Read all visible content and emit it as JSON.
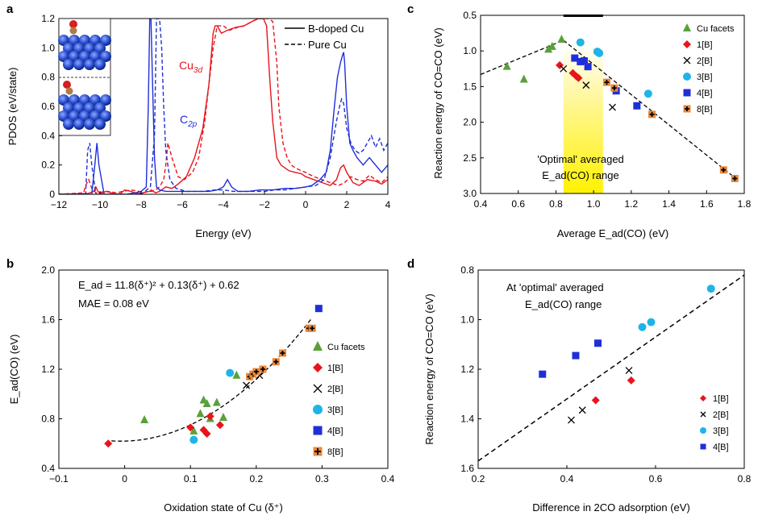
{
  "colors": {
    "red": "#e8141c",
    "blue": "#1f2fd8",
    "green": "#5aa03a",
    "cyan": "#1fb4e8",
    "orange": "#e8883a",
    "yellow": "#fff200",
    "black": "#000000"
  },
  "chart_data": [
    {
      "panel": "a",
      "type": "line",
      "xlabel": "Energy (eV)",
      "ylabel": "PDOS (eV/state)",
      "xlim": [
        -12,
        4
      ],
      "ylim": [
        0,
        1.2
      ],
      "xticks": [
        "−12",
        "−10",
        "−8",
        "−6",
        "−4",
        "−2",
        "0",
        "2",
        "4"
      ],
      "yticks": [
        "0",
        "0.2",
        "0.4",
        "0.6",
        "0.8",
        "1.0",
        "1.2"
      ],
      "legend": [
        "B-doped Cu",
        "Pure Cu"
      ],
      "legend_position": "top-right",
      "annotations": {
        "cu": "Cu",
        "cu_sub": "3d",
        "c": "C",
        "c_sub": "2p"
      },
      "inset": "atomic structure images (top: B-doped Cu, bottom: pure Cu)",
      "series": [
        {
          "name": "Cu3d B-doped Cu",
          "color": "red",
          "style": "solid",
          "x": [
            -12,
            -10.6,
            -10.3,
            -10.2,
            -10.1,
            -10.0,
            -9.7,
            -9.2,
            -9.0,
            -8.8,
            -8.5,
            -8.2,
            -7.9,
            -7.6,
            -7.5,
            -7.4,
            -7.3,
            -7.1,
            -6.8,
            -6.5,
            -6.2,
            -5.8,
            -5.4,
            -5.0,
            -4.7,
            -4.5,
            -4.4,
            -4.3,
            -4.1,
            -3.8,
            -3.4,
            -3.0,
            -2.6,
            -2.3,
            -2.15,
            -2.05,
            -1.9,
            -1.75,
            -1.6,
            -1.4,
            -1.2,
            -1.0,
            -0.8,
            -0.5,
            -0.2,
            0.0,
            0.4,
            0.8,
            1.2,
            1.5,
            1.7,
            1.85,
            2.0,
            2.3,
            2.6,
            3.0,
            3.4,
            3.7,
            4.0
          ],
          "y": [
            0.0,
            0.005,
            0.02,
            0.05,
            0.02,
            0.005,
            0.02,
            0.0,
            0.005,
            0.03,
            0.02,
            0.005,
            0.01,
            0.02,
            0.03,
            0.02,
            0.01,
            0.02,
            0.05,
            0.04,
            0.07,
            0.12,
            0.25,
            0.45,
            0.75,
            1.1,
            1.15,
            1.15,
            1.1,
            1.12,
            1.14,
            1.15,
            1.18,
            1.2,
            1.2,
            1.2,
            1.15,
            0.8,
            0.5,
            0.25,
            0.2,
            0.18,
            0.16,
            0.15,
            0.14,
            0.12,
            0.1,
            0.08,
            0.06,
            0.1,
            0.18,
            0.2,
            0.15,
            0.08,
            0.06,
            0.1,
            0.09,
            0.07,
            0.1
          ]
        },
        {
          "name": "Cu3d Pure Cu",
          "color": "red",
          "style": "dashed",
          "x": [
            -12,
            -10.8,
            -10.7,
            -10.55,
            -10.4,
            -10.2,
            -9.6,
            -9.2,
            -8.9,
            -8.5,
            -8.1,
            -7.9,
            -7.7,
            -7.5,
            -7.3,
            -7.1,
            -6.9,
            -6.8,
            -6.7,
            -6.5,
            -6.2,
            -5.9,
            -5.5,
            -5.2,
            -4.9,
            -4.7,
            -4.5,
            -4.3,
            -4.0,
            -3.7,
            -3.3,
            -3.0,
            -2.6,
            -2.3,
            -2.0,
            -1.8,
            -1.6,
            -1.4,
            -1.3,
            -1.1,
            -0.9,
            -0.7,
            -0.5,
            -0.2,
            0.0,
            0.4,
            0.8,
            1.2,
            1.6,
            1.9,
            2.2,
            2.5,
            2.8,
            3.1,
            3.4,
            3.7,
            4.0
          ],
          "y": [
            0.0,
            0.01,
            0.06,
            0.1,
            0.04,
            0.01,
            0.02,
            0.01,
            0.02,
            0.03,
            0.02,
            0.01,
            0.02,
            0.02,
            0.03,
            0.05,
            0.1,
            0.2,
            0.35,
            0.25,
            0.12,
            0.1,
            0.15,
            0.25,
            0.5,
            0.75,
            1.0,
            1.15,
            1.15,
            1.12,
            1.14,
            1.15,
            1.18,
            1.2,
            1.2,
            1.2,
            1.18,
            0.9,
            0.6,
            0.35,
            0.25,
            0.2,
            0.18,
            0.16,
            0.15,
            0.12,
            0.1,
            0.08,
            0.06,
            0.08,
            0.12,
            0.1,
            0.09,
            0.13,
            0.1,
            0.08,
            0.12
          ]
        },
        {
          "name": "C2p B-doped Cu",
          "color": "blue",
          "style": "solid",
          "x": [
            -12,
            -10.4,
            -10.25,
            -10.15,
            -10.05,
            -9.8,
            -9.0,
            -8.7,
            -8.3,
            -8.0,
            -7.75,
            -7.65,
            -7.58,
            -7.52,
            -7.45,
            -7.35,
            -7.25,
            -7.1,
            -6.8,
            -6.4,
            -5.8,
            -5.2,
            -4.7,
            -4.3,
            -4.0,
            -3.8,
            -3.6,
            -3.3,
            -2.8,
            -2.2,
            -1.6,
            -1.0,
            -0.5,
            0.0,
            0.3,
            0.7,
            1.0,
            1.2,
            1.4,
            1.55,
            1.7,
            1.8,
            1.85,
            1.9,
            2.0,
            2.15,
            2.3,
            2.5,
            2.8,
            3.1,
            3.4,
            3.7,
            4.0
          ],
          "y": [
            0.0,
            0.0,
            0.2,
            0.35,
            0.2,
            0.0,
            0.0,
            0.0,
            0.01,
            0.02,
            0.05,
            0.6,
            1.2,
            1.2,
            0.8,
            0.25,
            0.05,
            0.03,
            0.02,
            0.02,
            0.02,
            0.02,
            0.02,
            0.03,
            0.05,
            0.1,
            0.05,
            0.02,
            0.02,
            0.03,
            0.03,
            0.04,
            0.04,
            0.05,
            0.06,
            0.1,
            0.15,
            0.3,
            0.6,
            0.8,
            0.9,
            0.95,
            0.97,
            0.9,
            0.6,
            0.35,
            0.3,
            0.25,
            0.2,
            0.25,
            0.2,
            0.15,
            0.2
          ]
        },
        {
          "name": "C2p Pure Cu",
          "color": "blue",
          "style": "dashed",
          "x": [
            -12,
            -10.7,
            -10.6,
            -10.5,
            -10.4,
            -10.2,
            -9.0,
            -8.0,
            -7.55,
            -7.35,
            -7.25,
            -7.2,
            -7.1,
            -7.0,
            -6.9,
            -6.8,
            -6.6,
            -6.3,
            -5.8,
            -5.0,
            -4.4,
            -4.0,
            -3.5,
            -3.0,
            -2.5,
            -2.0,
            -1.5,
            -1.0,
            -0.5,
            0.0,
            0.5,
            0.9,
            1.2,
            1.5,
            1.65,
            1.75,
            1.85,
            2.0,
            2.2,
            2.4,
            2.6,
            2.8,
            3.0,
            3.2,
            3.4,
            3.6,
            3.8,
            4.0
          ],
          "y": [
            0.0,
            0.0,
            0.3,
            0.35,
            0.2,
            0.0,
            0.0,
            0.0,
            0.05,
            0.4,
            1.2,
            1.2,
            1.2,
            1.0,
            0.6,
            0.3,
            0.1,
            0.04,
            0.02,
            0.02,
            0.03,
            0.03,
            0.02,
            0.02,
            0.02,
            0.02,
            0.03,
            0.03,
            0.04,
            0.05,
            0.06,
            0.1,
            0.25,
            0.5,
            0.6,
            0.65,
            0.62,
            0.45,
            0.35,
            0.3,
            0.28,
            0.3,
            0.35,
            0.4,
            0.32,
            0.38,
            0.3,
            0.35
          ]
        }
      ]
    },
    {
      "panel": "b",
      "type": "scatter",
      "xlabel": "Oxidation state of Cu (δ⁺)",
      "ylabel": "E_ad(CO) (eV)",
      "xlim": [
        -0.1,
        0.4
      ],
      "ylim": [
        0.4,
        2.0
      ],
      "xticks": [
        "−0.1",
        "0",
        "0.1",
        "0.2",
        "0.3",
        "0.4"
      ],
      "yticks": [
        "0.4",
        "0.8",
        "1.2",
        "1.6",
        "2.0"
      ],
      "equation": "E_ad = 11.8(δ⁺)² + 0.13(δ⁺) + 0.62",
      "mae": "MAE = 0.08 eV",
      "fit": {
        "a": 11.8,
        "b": 0.13,
        "c": 0.62,
        "x_range": [
          -0.02,
          0.285
        ]
      },
      "legend_position": "right",
      "series": [
        {
          "name": "Cu facets",
          "marker": "triangle",
          "color": "green",
          "points": [
            [
              0.03,
              0.79
            ],
            [
              0.105,
              0.7
            ],
            [
              0.115,
              0.84
            ],
            [
              0.12,
              0.95
            ],
            [
              0.125,
              0.92
            ],
            [
              0.13,
              0.8
            ],
            [
              0.14,
              0.93
            ],
            [
              0.15,
              0.81
            ],
            [
              0.17,
              1.15
            ]
          ]
        },
        {
          "name": "1[B]",
          "marker": "diamond",
          "color": "red",
          "points": [
            [
              -0.025,
              0.6
            ],
            [
              0.1,
              0.73
            ],
            [
              0.12,
              0.71
            ],
            [
              0.125,
              0.68
            ],
            [
              0.13,
              0.82
            ],
            [
              0.145,
              0.75
            ]
          ]
        },
        {
          "name": "2[B]",
          "marker": "x",
          "color": "black",
          "points": [
            [
              0.185,
              1.07
            ],
            [
              0.205,
              1.15
            ]
          ]
        },
        {
          "name": "3[B]",
          "marker": "circle",
          "color": "cyan",
          "points": [
            [
              0.105,
              0.63
            ],
            [
              0.16,
              1.17
            ]
          ]
        },
        {
          "name": "4[B]",
          "marker": "square",
          "color": "blue",
          "points": [
            [
              0.295,
              1.69
            ]
          ]
        },
        {
          "name": "8[B]",
          "marker": "square-plus",
          "color": "orange",
          "points": [
            [
              0.19,
              1.14
            ],
            [
              0.195,
              1.16
            ],
            [
              0.2,
              1.18
            ],
            [
              0.21,
              1.2
            ],
            [
              0.23,
              1.26
            ],
            [
              0.24,
              1.33
            ],
            [
              0.28,
              1.53
            ],
            [
              0.285,
              1.53
            ]
          ]
        }
      ]
    },
    {
      "panel": "c",
      "type": "scatter",
      "xlabel": "Average E_ad(CO) (eV)",
      "ylabel": "Reaction energy of CO=CO (eV)",
      "xlim": [
        0.4,
        1.8
      ],
      "ylim": [
        0.5,
        3.0
      ],
      "y_inverted": true,
      "xticks": [
        "0.4",
        "0.6",
        "0.8",
        "1.0",
        "1.2",
        "1.4",
        "1.6",
        "1.8"
      ],
      "yticks": [
        "0.5",
        "1.0",
        "1.5",
        "2.0",
        "2.5",
        "3.0"
      ],
      "optimal_range": [
        0.84,
        1.05
      ],
      "top_bar": [
        0.84,
        1.05
      ],
      "optimal_label_1": "'Optimal' averaged",
      "optimal_label_2": "E_ad(CO) range",
      "fit_lines": [
        [
          [
            0.4,
            1.33
          ],
          [
            0.84,
            0.85
          ]
        ],
        [
          [
            0.84,
            0.85
          ],
          [
            1.76,
            2.8
          ]
        ]
      ],
      "legend_position": "top-right",
      "series": [
        {
          "name": "Cu facets",
          "marker": "triangle",
          "color": "green",
          "points": [
            [
              0.54,
              1.22
            ],
            [
              0.63,
              1.4
            ],
            [
              0.76,
              0.98
            ],
            [
              0.78,
              0.94
            ],
            [
              0.83,
              0.84
            ]
          ]
        },
        {
          "name": "1[B]",
          "marker": "diamond",
          "color": "red",
          "points": [
            [
              0.82,
              1.2
            ],
            [
              0.89,
              1.31
            ],
            [
              0.91,
              1.36
            ],
            [
              0.92,
              1.38
            ]
          ]
        },
        {
          "name": "2[B]",
          "marker": "x",
          "color": "black",
          "points": [
            [
              0.84,
              1.25
            ],
            [
              0.96,
              1.48
            ],
            [
              1.1,
              1.79
            ]
          ]
        },
        {
          "name": "3[B]",
          "marker": "circle",
          "color": "cyan",
          "points": [
            [
              0.93,
              0.88
            ],
            [
              1.02,
              1.01
            ],
            [
              1.03,
              1.03
            ],
            [
              1.29,
              1.6
            ]
          ]
        },
        {
          "name": "4[B]",
          "marker": "square",
          "color": "blue",
          "points": [
            [
              0.9,
              1.1
            ],
            [
              0.93,
              1.15
            ],
            [
              0.95,
              1.14
            ],
            [
              0.97,
              1.22
            ],
            [
              1.12,
              1.56
            ],
            [
              1.23,
              1.77
            ]
          ]
        },
        {
          "name": "8[B]",
          "marker": "square-plus",
          "color": "orange",
          "points": [
            [
              1.07,
              1.44
            ],
            [
              1.11,
              1.52
            ],
            [
              1.31,
              1.89
            ],
            [
              1.69,
              2.67
            ],
            [
              1.75,
              2.79
            ]
          ]
        }
      ]
    },
    {
      "panel": "d",
      "type": "scatter",
      "xlabel": "Difference in 2CO adsorption (eV)",
      "ylabel": "Reaction energy of CO=CO (eV)",
      "xlim": [
        0.2,
        0.8
      ],
      "ylim": [
        0.8,
        1.6
      ],
      "y_inverted": true,
      "xticks": [
        "0.2",
        "0.4",
        "0.6",
        "0.8"
      ],
      "yticks": [
        "0.8",
        "1.0",
        "1.2",
        "1.4",
        "1.6"
      ],
      "title_1": "At 'optimal' averaged",
      "title_2": "E_ad(CO) range",
      "fit_line": [
        [
          0.2,
          1.57
        ],
        [
          0.8,
          0.82
        ]
      ],
      "legend_position": "bottom-right",
      "series": [
        {
          "name": "1[B]",
          "marker": "diamond",
          "color": "red",
          "points": [
            [
              0.465,
              1.325
            ],
            [
              0.545,
              1.245
            ]
          ]
        },
        {
          "name": "2[B]",
          "marker": "x",
          "color": "black",
          "points": [
            [
              0.41,
              1.405
            ],
            [
              0.435,
              1.365
            ],
            [
              0.54,
              1.205
            ]
          ]
        },
        {
          "name": "3[B]",
          "marker": "circle",
          "color": "cyan",
          "points": [
            [
              0.57,
              1.03
            ],
            [
              0.59,
              1.01
            ],
            [
              0.725,
              0.875
            ]
          ]
        },
        {
          "name": "4[B]",
          "marker": "square",
          "color": "blue",
          "points": [
            [
              0.345,
              1.22
            ],
            [
              0.42,
              1.145
            ],
            [
              0.47,
              1.095
            ]
          ]
        }
      ]
    }
  ],
  "panel_labels": [
    "a",
    "b",
    "c",
    "d"
  ]
}
